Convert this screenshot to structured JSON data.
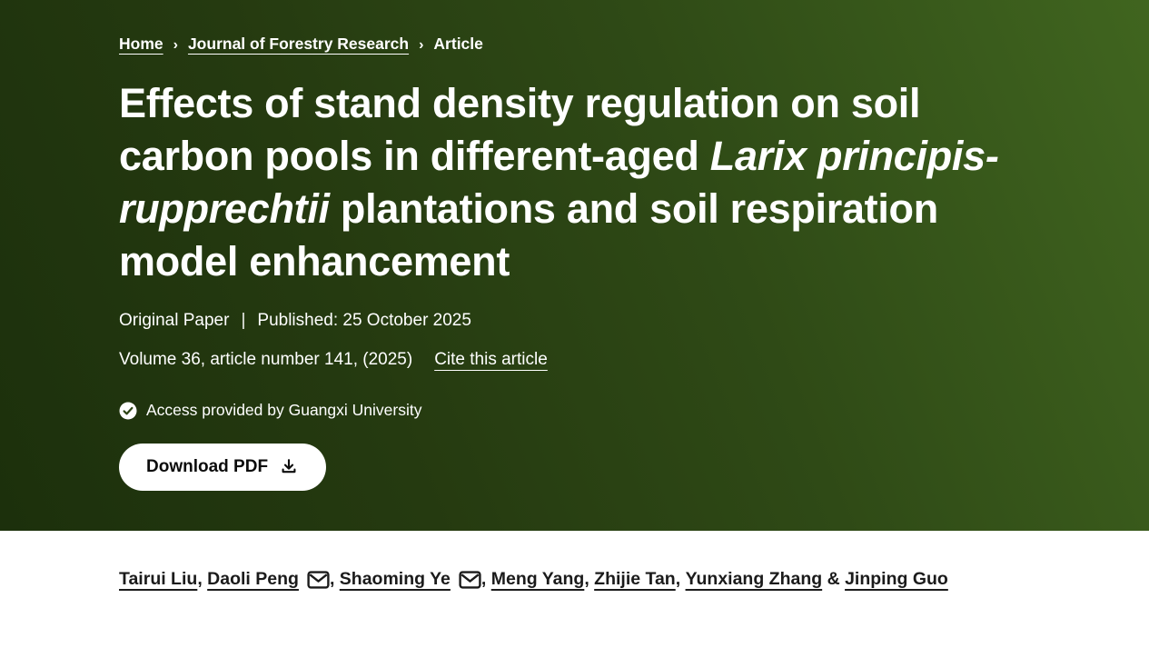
{
  "colors": {
    "hero_gradient_dark": "#1c300c",
    "hero_gradient_light": "#40651f",
    "hero_text": "#ffffff",
    "author_text": "#1b1b1b",
    "button_bg": "#ffffff",
    "button_text": "#0c0c0c"
  },
  "breadcrumb": {
    "separator": "›",
    "items": [
      {
        "label": "Home"
      },
      {
        "label": "Journal of Forestry Research"
      },
      {
        "label": "Article"
      }
    ]
  },
  "article": {
    "title_pre": "Effects of stand density regulation on soil carbon pools in different-aged ",
    "title_italic": "Larix principis-rupprechtii",
    "title_post": " plantations and soil respiration model enhancement",
    "type": "Original Paper",
    "meta_separator": "|",
    "published": "Published: 25 October 2025",
    "volume_line": "Volume 36, article number 141, (2025)",
    "cite_link_label": "Cite this article",
    "access_note": "Access provided by Guangxi University",
    "download_button_label": "Download PDF"
  },
  "authors": {
    "list": [
      {
        "name": "Tairui Liu",
        "email_icon": false,
        "separator": ", "
      },
      {
        "name": "Daoli Peng",
        "email_icon": true,
        "separator": ", "
      },
      {
        "name": "Shaoming Ye",
        "email_icon": true,
        "separator": ", "
      },
      {
        "name": "Meng Yang",
        "email_icon": false,
        "separator": ", "
      },
      {
        "name": "Zhijie Tan",
        "email_icon": false,
        "separator": ", "
      },
      {
        "name": "Yunxiang Zhang",
        "email_icon": false,
        "separator": " & "
      },
      {
        "name": "Jinping Guo",
        "email_icon": false,
        "separator": ""
      }
    ]
  }
}
